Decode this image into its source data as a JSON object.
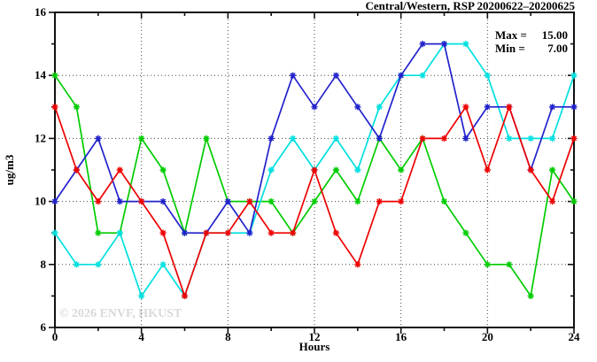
{
  "watermark": "© 2026 ENVF, HKUST",
  "chart_data": {
    "type": "line",
    "title": "Central/Western, RSP 20200622–20200625",
    "xlabel": "Hours",
    "ylabel": "ug/m3",
    "xlim": [
      0,
      24
    ],
    "ylim": [
      6,
      16
    ],
    "grid": true,
    "legend": "none",
    "x_ticks": [
      0,
      4,
      8,
      12,
      16,
      20,
      24
    ],
    "x_minor_ticks": [
      2,
      6,
      10,
      14,
      18,
      22
    ],
    "y_ticks": [
      6,
      8,
      10,
      12,
      14,
      16
    ],
    "y_minor_ticks": [
      7,
      9,
      11,
      13,
      15
    ],
    "stats": [
      {
        "label": "Max =",
        "value": "15.00"
      },
      {
        "label": "Min =",
        "value": "7.00"
      }
    ],
    "x": [
      0,
      1,
      2,
      3,
      4,
      5,
      6,
      7,
      8,
      9,
      10,
      11,
      12,
      13,
      14,
      15,
      16,
      17,
      18,
      19,
      20,
      21,
      22,
      23,
      24
    ],
    "series": [
      {
        "name": "series-green",
        "color": "#00cc00",
        "values": [
          14,
          13,
          9,
          9,
          12,
          11,
          9,
          12,
          10,
          10,
          10,
          9,
          10,
          11,
          10,
          12,
          11,
          12,
          10,
          9,
          8,
          8,
          7,
          11,
          10
        ]
      },
      {
        "name": "series-cyan",
        "color": "#00e0e0",
        "values": [
          9,
          8,
          8,
          9,
          7,
          8,
          7,
          9,
          9,
          9,
          11,
          12,
          11,
          12,
          11,
          13,
          14,
          14,
          15,
          15,
          14,
          12,
          12,
          12,
          14
        ]
      },
      {
        "name": "series-blue",
        "color": "#2222cc",
        "values": [
          10,
          11,
          12,
          10,
          10,
          10,
          9,
          9,
          10,
          9,
          12,
          14,
          13,
          14,
          13,
          12,
          14,
          15,
          15,
          12,
          13,
          13,
          11,
          13,
          13
        ]
      },
      {
        "name": "series-red",
        "color": "#ee0000",
        "values": [
          13,
          11,
          10,
          11,
          10,
          9,
          7,
          9,
          9,
          10,
          9,
          9,
          11,
          9,
          8,
          10,
          10,
          12,
          12,
          13,
          11,
          13,
          11,
          10,
          12
        ]
      }
    ],
    "axis_color": "#111111",
    "grid_color": "#444444"
  }
}
